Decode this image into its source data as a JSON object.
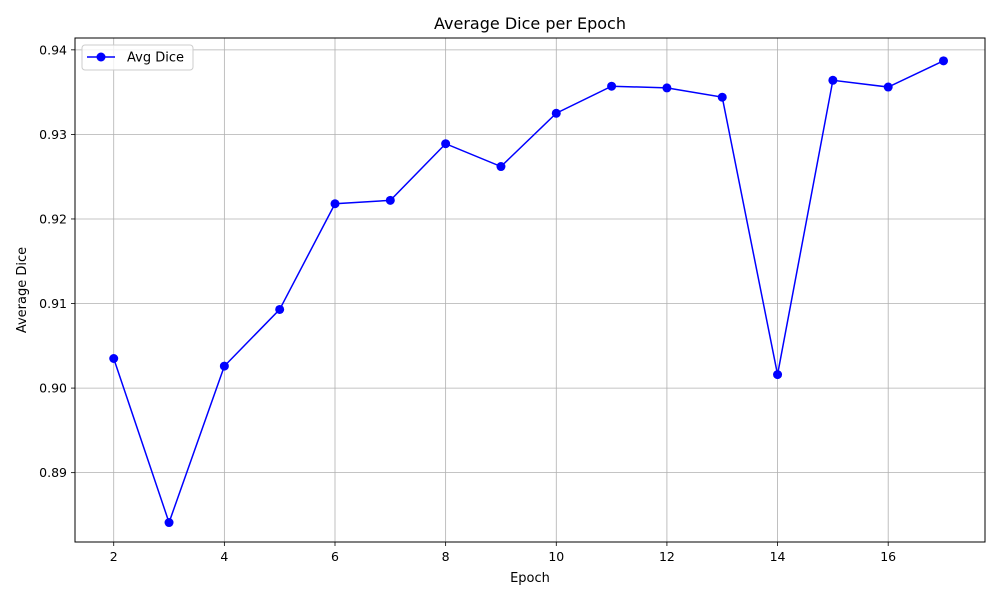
{
  "chart_data": {
    "type": "line",
    "title": "Average Dice per Epoch",
    "xlabel": "Epoch",
    "ylabel": "Average Dice",
    "xlim": [
      1.3,
      17.75
    ],
    "ylim": [
      0.8818,
      0.9414
    ],
    "xticks": [
      2,
      4,
      6,
      8,
      10,
      12,
      14,
      16
    ],
    "yticks": [
      0.89,
      0.9,
      0.91,
      0.92,
      0.93,
      0.94
    ],
    "ytick_labels": [
      "0.89",
      "0.90",
      "0.91",
      "0.92",
      "0.93",
      "0.94"
    ],
    "grid": true,
    "legend_position": "top-left",
    "series": [
      {
        "name": "Avg Dice",
        "color": "#0000ff",
        "marker": "circle",
        "x": [
          2,
          3,
          4,
          5,
          6,
          7,
          8,
          9,
          10,
          11,
          12,
          13,
          14,
          15,
          16,
          17
        ],
        "values": [
          0.9035,
          0.8841,
          0.9026,
          0.9093,
          0.9218,
          0.9222,
          0.9289,
          0.9262,
          0.9325,
          0.9357,
          0.9355,
          0.9344,
          0.9016,
          0.9364,
          0.9356,
          0.9387
        ]
      }
    ]
  }
}
